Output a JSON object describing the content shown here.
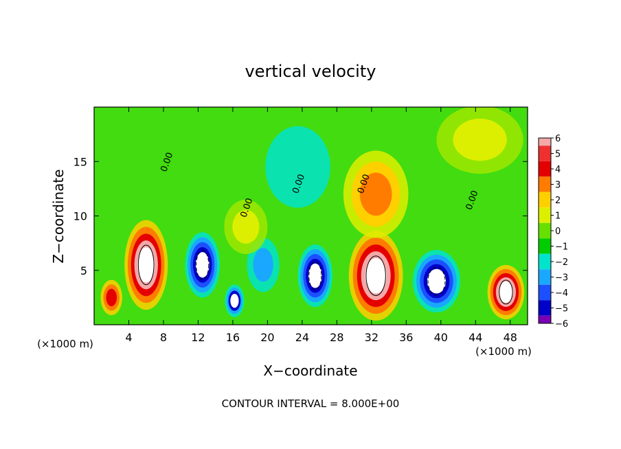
{
  "chart_data": {
    "type": "heatmap",
    "title": "vertical velocity",
    "xlabel": "X−coordinate",
    "ylabel": "Z−coordinate",
    "x_unit_left": "(×1000 m)",
    "x_unit_right": "(×1000 m)",
    "footer": "CONTOUR INTERVAL = 8.000E+00",
    "xlim": [
      0,
      50
    ],
    "ylim": [
      0,
      20
    ],
    "x_ticks": [
      4,
      8,
      12,
      16,
      20,
      24,
      28,
      32,
      36,
      40,
      44,
      48
    ],
    "y_ticks": [
      5,
      10,
      15
    ],
    "contour_label": "0.00",
    "colorbar": {
      "range": [
        -6,
        6
      ],
      "labels": [
        "6",
        "5",
        "4",
        "3",
        "2",
        "1",
        "0",
        "−1",
        "−2",
        "−3",
        "−4",
        "−5",
        "−6"
      ],
      "colors": [
        "#f4a8a8",
        "#ef3030",
        "#e40000",
        "#ff7c00",
        "#ffd000",
        "#ddef00",
        "#66e000",
        "#00cc00",
        "#00e4cc",
        "#1aa8ff",
        "#1c50ff",
        "#0000c8",
        "#7a00b4"
      ]
    },
    "cells": [
      {
        "x": 6,
        "z": 5.5,
        "value": 10,
        "sx": 2.0,
        "sz": 3.3
      },
      {
        "x": 32.5,
        "z": 4.5,
        "value": 10,
        "sx": 2.5,
        "sz": 3.3
      },
      {
        "x": 47.5,
        "z": 3.0,
        "value": 9,
        "sx": 1.7,
        "sz": 2.0
      },
      {
        "x": 12.5,
        "z": 5.5,
        "value": -9,
        "sx": 1.6,
        "sz": 2.4
      },
      {
        "x": 16.2,
        "z": 2.2,
        "value": -7,
        "sx": 0.9,
        "sz": 1.2
      },
      {
        "x": 25.5,
        "z": 4.5,
        "value": -9,
        "sx": 1.6,
        "sz": 2.3
      },
      {
        "x": 39.5,
        "z": 4.0,
        "value": -9,
        "sx": 2.2,
        "sz": 2.3
      },
      {
        "x": 32.5,
        "z": 12.0,
        "value": 4,
        "sx": 3.0,
        "sz": 3.2
      },
      {
        "x": 23.5,
        "z": 14.5,
        "value": -2,
        "sx": 3.0,
        "sz": 3.0
      },
      {
        "x": 44.5,
        "z": 17.0,
        "value": 1.2,
        "sx": 4.0,
        "sz": 2.5
      },
      {
        "x": 2.0,
        "z": 2.5,
        "value": 5,
        "sx": 1.0,
        "sz": 1.3
      },
      {
        "x": 19.5,
        "z": 5.5,
        "value": -3,
        "sx": 1.5,
        "sz": 2.0
      },
      {
        "x": 17.5,
        "z": 9.0,
        "value": 1.5,
        "sx": 2.0,
        "sz": 2.0
      }
    ],
    "grid": false
  }
}
